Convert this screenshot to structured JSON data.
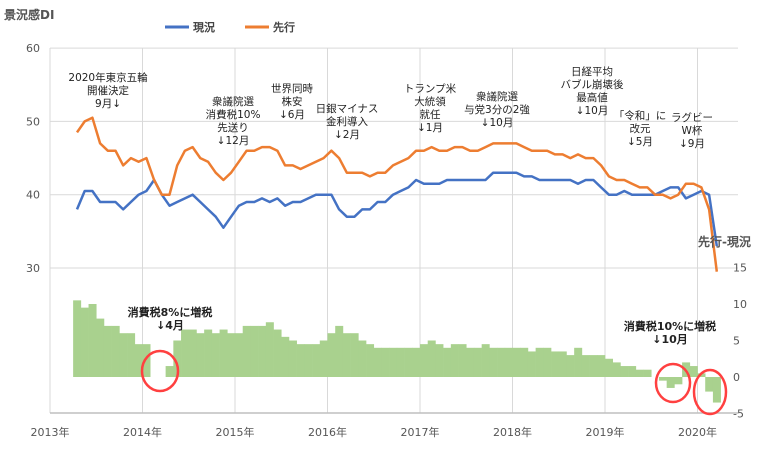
{
  "chart_data": [
    {
      "type": "line",
      "title": "景況感DI",
      "y_axis": "left",
      "ylim": [
        30,
        60
      ],
      "yticks": [
        "60",
        "50",
        "40",
        "30"
      ],
      "xticks": [
        "2013年",
        "2014年",
        "2015年",
        "2016年",
        "2017年",
        "2018年",
        "2019年",
        "2020年"
      ],
      "x_start": "2013-04",
      "x_step": "month",
      "legend": {
        "position": "top-center",
        "entries": [
          "現況",
          "先行"
        ]
      },
      "series": [
        {
          "name": "現況",
          "color": "#4472c4",
          "values": [
            38,
            40.5,
            40.5,
            39,
            39,
            39,
            38,
            39,
            40,
            40.5,
            42,
            40,
            38.5,
            39,
            39.5,
            40,
            39,
            38,
            37,
            35.5,
            37,
            38.5,
            39,
            39,
            39.5,
            39,
            39.5,
            38.5,
            39,
            39,
            39.5,
            40,
            40,
            40,
            38,
            37,
            37,
            38,
            38,
            39,
            39,
            40,
            40.5,
            41,
            42,
            41.5,
            41.5,
            41.5,
            42,
            42,
            42,
            42,
            42,
            42,
            43,
            43,
            43,
            43,
            42.5,
            42.5,
            42,
            42,
            42,
            42,
            42,
            41.5,
            42,
            42,
            41,
            40,
            40,
            40.5,
            40,
            40,
            40,
            40,
            40.5,
            41,
            41,
            39.5,
            40,
            40.5,
            40,
            33
          ]
        },
        {
          "name": "先行",
          "color": "#ed7d31",
          "values": [
            48.5,
            50,
            50.5,
            47,
            46,
            46,
            44,
            45,
            44.5,
            45,
            42,
            40,
            40,
            44,
            46,
            46.5,
            45,
            44.5,
            43,
            42,
            43,
            44.5,
            46,
            46,
            46.5,
            46.5,
            46,
            44,
            44,
            43.5,
            44,
            44.5,
            45,
            46,
            45,
            43,
            43,
            43,
            42.5,
            43,
            43,
            44,
            44.5,
            45,
            46,
            46,
            46.5,
            46,
            46,
            46.5,
            46.5,
            46,
            46,
            46.5,
            47,
            47,
            47,
            47,
            46.5,
            46,
            46,
            46,
            45.5,
            45.5,
            45,
            45.5,
            45,
            45,
            44,
            42.5,
            42,
            42,
            41.5,
            41,
            41,
            40,
            40,
            39.5,
            40,
            41.5,
            41.5,
            41,
            38,
            29.5
          ]
        }
      ]
    },
    {
      "type": "bar",
      "title": "先行-現況",
      "y_axis": "right",
      "ylim": [
        -5,
        15
      ],
      "yticks": [
        "15",
        "10",
        "5",
        "0",
        "-5"
      ],
      "derived_from": "先行 minus 現況",
      "color": "#a9d18e"
    }
  ],
  "annotations": {
    "olympics": [
      "2020年東京五輪",
      "開催決定",
      "9月↓"
    ],
    "election2014": [
      "衆議院選",
      "消費税10%",
      "先送り",
      "↓12月"
    ],
    "crash2015": [
      "世界同時",
      "株安",
      "↓6月"
    ],
    "negrate": [
      "日銀マイナス",
      "金利導入",
      "↓2月"
    ],
    "trump": [
      "トランプ米",
      "大統領",
      "就任",
      "↓1月"
    ],
    "election2017": [
      "衆議院選",
      "与党3分の2強",
      "↓10月"
    ],
    "nikkei": [
      "日経平均",
      "バブル崩壊後",
      "最高値",
      "↓10月"
    ],
    "reiwa": [
      "「令和」に",
      "改元",
      "↓5月"
    ],
    "rugby": [
      "ラグビー",
      "W杯",
      "↓9月"
    ],
    "tax8": [
      "消費税8%に増税",
      "↓4月"
    ],
    "tax10": [
      "消費税10%に増税",
      "↓10月"
    ]
  }
}
